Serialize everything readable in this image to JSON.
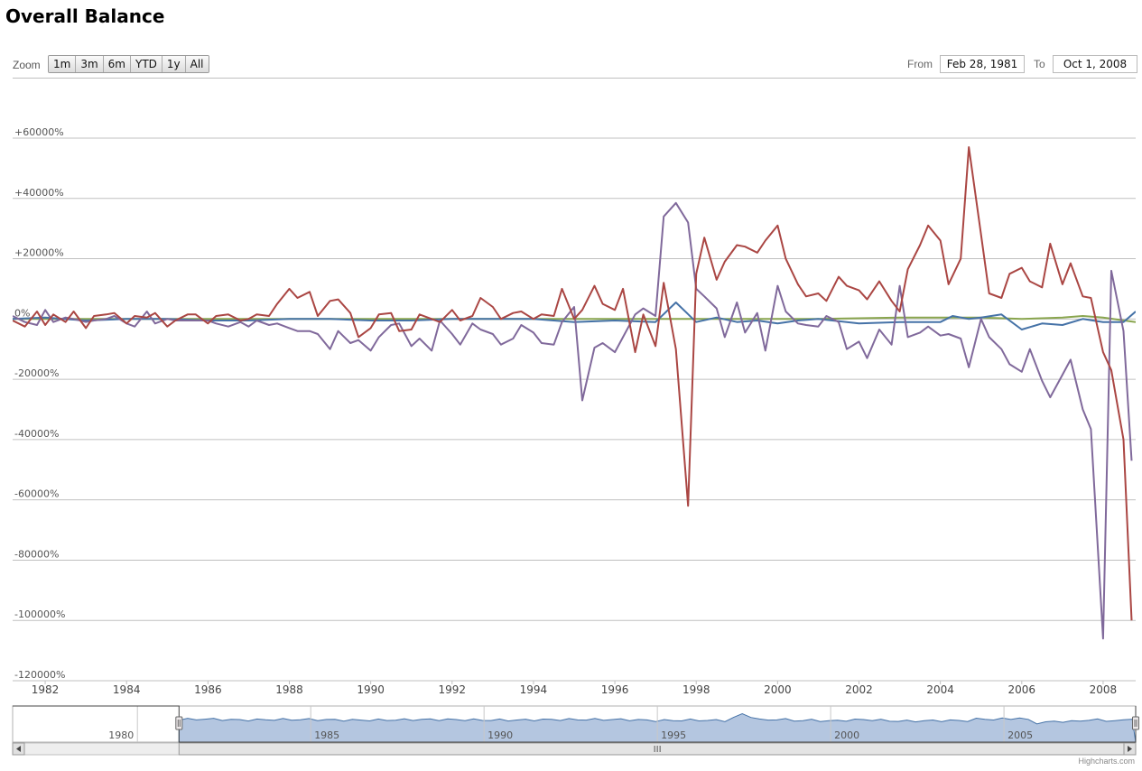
{
  "header": {
    "title": "Overall Balance"
  },
  "range_selector": {
    "zoom_label": "Zoom",
    "buttons": [
      "1m",
      "3m",
      "6m",
      "YTD",
      "1y",
      "All"
    ],
    "from_label": "From",
    "from_value": "Feb 28, 1981",
    "to_label": "To",
    "to_value": "Oct 1, 2008"
  },
  "credits": "Highcharts.com",
  "chart_data": {
    "type": "line",
    "title": "Overall Balance",
    "xlabel": "",
    "ylabel": "",
    "xlim": [
      1981.2,
      2008.8
    ],
    "ylim": [
      -120000,
      60000
    ],
    "y_ticks": [
      "+60000%",
      "+40000%",
      "+20000%",
      "0%",
      "-20000%",
      "-40000%",
      "-60000%",
      "-80000%",
      "-100000%",
      "-120000%"
    ],
    "x_ticks": [
      "1982",
      "1984",
      "1986",
      "1988",
      "1990",
      "1992",
      "1994",
      "1996",
      "1998",
      "2000",
      "2002",
      "2004",
      "2006",
      "2008"
    ],
    "grid": true,
    "legend": "none",
    "series": [
      {
        "color": "#aa4643",
        "x": [
          1981.2,
          1981.5,
          1981.8,
          1982.0,
          1982.2,
          1982.5,
          1982.7,
          1983.0,
          1983.2,
          1983.5,
          1983.7,
          1984.0,
          1984.2,
          1984.5,
          1984.7,
          1985.0,
          1985.2,
          1985.5,
          1985.7,
          1986.0,
          1986.2,
          1986.5,
          1986.8,
          1987.0,
          1987.2,
          1987.5,
          1987.7,
          1988.0,
          1988.2,
          1988.5,
          1988.7,
          1989.0,
          1989.2,
          1989.5,
          1989.7,
          1990.0,
          1990.2,
          1990.5,
          1990.7,
          1991.0,
          1991.2,
          1991.5,
          1991.7,
          1992.0,
          1992.2,
          1992.5,
          1992.7,
          1993.0,
          1993.2,
          1993.5,
          1993.7,
          1994.0,
          1994.2,
          1994.5,
          1994.7,
          1995.0,
          1995.2,
          1995.5,
          1995.7,
          1996.0,
          1996.2,
          1996.5,
          1996.7,
          1997.0,
          1997.2,
          1997.5,
          1997.8,
          1998.0,
          1998.2,
          1998.5,
          1998.7,
          1999.0,
          1999.2,
          1999.5,
          1999.7,
          2000.0,
          2000.2,
          2000.5,
          2000.7,
          2001.0,
          2001.2,
          2001.5,
          2001.7,
          2002.0,
          2002.2,
          2002.5,
          2002.8,
          2003.0,
          2003.2,
          2003.5,
          2003.7,
          2004.0,
          2004.2,
          2004.5,
          2004.7,
          2005.0,
          2005.2,
          2005.5,
          2005.7,
          2006.0,
          2006.2,
          2006.5,
          2006.7,
          2007.0,
          2007.2,
          2007.5,
          2007.7,
          2008.0,
          2008.2,
          2008.5,
          2008.7
        ],
        "values": [
          -500,
          -2500,
          2500,
          -2000,
          1500,
          -1000,
          2500,
          -3000,
          1000,
          1500,
          2000,
          -1500,
          1000,
          500,
          2000,
          -2500,
          -500,
          1500,
          1500,
          -1500,
          1000,
          1500,
          -500,
          0,
          1500,
          1000,
          5000,
          10000,
          7000,
          9000,
          1000,
          6000,
          6500,
          2000,
          -6000,
          -3000,
          1500,
          2000,
          -4000,
          -3500,
          1500,
          0,
          -1000,
          3000,
          -500,
          1000,
          7000,
          4000,
          0,
          2000,
          2500,
          0,
          1500,
          1000,
          10000,
          0,
          3000,
          11000,
          5000,
          3000,
          10000,
          -11000,
          1500,
          -9000,
          12000,
          -10000,
          -62000,
          15000,
          27000,
          13000,
          19000,
          24500,
          24000,
          22000,
          26000,
          31000,
          20000,
          11500,
          7500,
          8500,
          6000,
          14000,
          11000,
          9500,
          6500,
          12500,
          6000,
          2500,
          16500,
          24500,
          31000,
          26000,
          11500,
          20000,
          57000,
          28000,
          8500,
          7000,
          15000,
          17000,
          12500,
          10500,
          25000,
          11500,
          18500,
          7500,
          7000,
          -11000,
          -17000,
          -40000,
          -100000
        ]
      },
      {
        "color": "#80699b",
        "x": [
          1981.2,
          1981.5,
          1981.8,
          1982.0,
          1982.2,
          1982.5,
          1982.7,
          1983.0,
          1983.2,
          1983.5,
          1983.7,
          1984.0,
          1984.2,
          1984.5,
          1984.7,
          1985.0,
          1985.2,
          1985.5,
          1985.7,
          1986.0,
          1986.2,
          1986.5,
          1986.8,
          1987.0,
          1987.2,
          1987.5,
          1987.7,
          1988.0,
          1988.2,
          1988.5,
          1988.7,
          1989.0,
          1989.2,
          1989.5,
          1989.7,
          1990.0,
          1990.2,
          1990.5,
          1990.7,
          1991.0,
          1991.2,
          1991.5,
          1991.7,
          1992.0,
          1992.2,
          1992.5,
          1992.7,
          1993.0,
          1993.2,
          1993.5,
          1993.7,
          1994.0,
          1994.2,
          1994.5,
          1994.7,
          1995.0,
          1995.2,
          1995.5,
          1995.7,
          1996.0,
          1996.2,
          1996.5,
          1996.7,
          1997.0,
          1997.2,
          1997.5,
          1997.8,
          1998.0,
          1998.2,
          1998.5,
          1998.7,
          1999.0,
          1999.2,
          1999.5,
          1999.7,
          2000.0,
          2000.2,
          2000.5,
          2000.7,
          2001.0,
          2001.2,
          2001.5,
          2001.7,
          2002.0,
          2002.2,
          2002.5,
          2002.8,
          2003.0,
          2003.2,
          2003.5,
          2003.7,
          2004.0,
          2004.2,
          2004.5,
          2004.7,
          2005.0,
          2005.2,
          2005.5,
          2005.7,
          2006.0,
          2006.2,
          2006.5,
          2006.7,
          2007.0,
          2007.2,
          2007.5,
          2007.7,
          2008.0,
          2008.2,
          2008.5,
          2008.7
        ],
        "values": [
          1000,
          -1000,
          -2000,
          3000,
          -1000,
          500,
          0,
          -1000,
          -500,
          0,
          1000,
          -1500,
          -2500,
          2500,
          -1500,
          0,
          -500,
          -500,
          -500,
          -500,
          -1500,
          -2500,
          -1000,
          -2500,
          -500,
          -2000,
          -1500,
          -3000,
          -4000,
          -4000,
          -5000,
          -10000,
          -4000,
          -8000,
          -7000,
          -10500,
          -6000,
          -2000,
          -1500,
          -9000,
          -6500,
          -10500,
          -500,
          -5000,
          -8500,
          -1500,
          -3500,
          -5000,
          -8500,
          -6500,
          -2000,
          -4500,
          -8000,
          -8500,
          -1000,
          4000,
          -27000,
          -9500,
          -8000,
          -11000,
          -6000,
          1500,
          3500,
          1000,
          34000,
          38500,
          32000,
          10000,
          7500,
          3500,
          -6000,
          5500,
          -4500,
          2000,
          -10500,
          11000,
          2500,
          -1500,
          -2000,
          -2500,
          1000,
          -1000,
          -10000,
          -7500,
          -13000,
          -3500,
          -8500,
          11000,
          -6000,
          -4500,
          -2500,
          -5500,
          -5000,
          -6500,
          -16000,
          0,
          -6000,
          -10000,
          -15000,
          -17500,
          -10000,
          -20500,
          -26000,
          -18500,
          -13500,
          -30000,
          -36500,
          -106000,
          16000,
          -4000,
          -47000
        ]
      },
      {
        "color": "#4572a7",
        "x": [
          1981.2,
          1982.0,
          1983.0,
          1984.0,
          1985.0,
          1986.0,
          1987.0,
          1988.0,
          1989.0,
          1990.0,
          1991.0,
          1992.0,
          1993.0,
          1994.0,
          1995.0,
          1996.0,
          1997.0,
          1997.5,
          1998.0,
          1998.5,
          1999.0,
          1999.5,
          2000.0,
          2000.5,
          2001.0,
          2002.0,
          2003.0,
          2004.0,
          2004.3,
          2004.7,
          2005.0,
          2005.5,
          2006.0,
          2006.5,
          2007.0,
          2007.5,
          2008.0,
          2008.5,
          2008.8
        ],
        "values": [
          0,
          500,
          -500,
          0,
          0,
          -500,
          -500,
          0,
          0,
          -500,
          -500,
          0,
          0,
          0,
          -1000,
          -500,
          -1000,
          5500,
          -1000,
          500,
          -1000,
          -500,
          -1500,
          -500,
          0,
          -1500,
          -1000,
          -1000,
          1000,
          0,
          500,
          1500,
          -3500,
          -1500,
          -2000,
          0,
          -1000,
          -1000,
          2500
        ]
      },
      {
        "color": "#89a54e",
        "x": [
          1981.2,
          1984.0,
          1987.0,
          1990.0,
          1993.0,
          1996.0,
          1999.0,
          2001.0,
          2003.0,
          2005.0,
          2006.0,
          2007.0,
          2007.5,
          2008.0,
          2008.8
        ],
        "values": [
          0,
          0,
          0,
          0,
          0,
          0,
          0,
          0,
          500,
          500,
          0,
          500,
          1000,
          500,
          -1000
        ]
      }
    ]
  },
  "navigator": {
    "x_ticks": [
      "1980",
      "1985",
      "1990",
      "1995",
      "2000",
      "2005"
    ],
    "x_tick_years": [
      1980,
      1985,
      1990,
      1995,
      2000,
      2005
    ],
    "year_range": [
      1976.4,
      2008.8
    ],
    "selection": [
      1981.2,
      2008.8
    ]
  }
}
